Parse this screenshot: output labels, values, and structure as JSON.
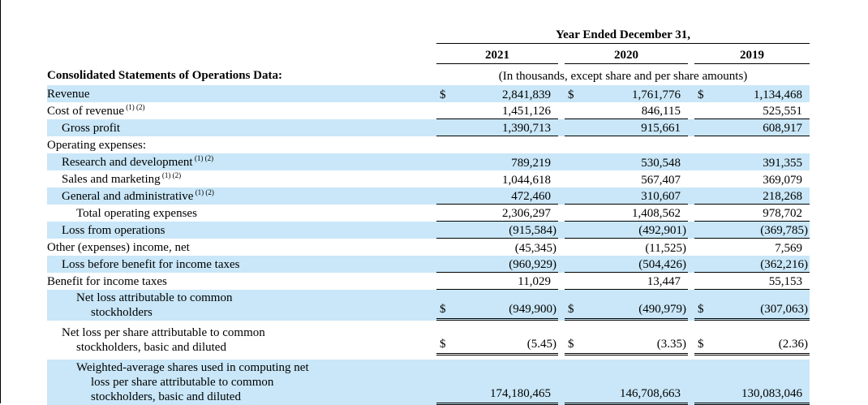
{
  "colors": {
    "row_shade": "#c9e7f8",
    "rule": "#000000"
  },
  "table": {
    "period_header": "Year Ended December 31,",
    "years": [
      "2021",
      "2020",
      "2019"
    ],
    "section_title": "Consolidated Statements of Operations Data:",
    "units_note": "(In thousands, except share and per share amounts)",
    "rows": [
      {
        "label": "Revenue",
        "sup": "",
        "indent": 0,
        "shaded": true,
        "dollar": true,
        "rule": "none",
        "values": [
          "2,841,839",
          "1,761,776",
          "1,134,468"
        ]
      },
      {
        "label": "Cost of revenue",
        "sup": "(1) (2)",
        "indent": 0,
        "shaded": false,
        "dollar": false,
        "rule": "single",
        "values": [
          "1,451,126",
          "846,115",
          "525,551"
        ]
      },
      {
        "label": "Gross profit",
        "sup": "",
        "indent": 1,
        "shaded": true,
        "dollar": false,
        "rule": "single",
        "values": [
          "1,390,713",
          "915,661",
          "608,917"
        ]
      },
      {
        "label": "Operating expenses:",
        "sup": "",
        "indent": 0,
        "shaded": false,
        "dollar": false,
        "rule": "none",
        "values": null
      },
      {
        "label": "Research and development",
        "sup": "(1) (2)",
        "indent": 1,
        "shaded": true,
        "dollar": false,
        "rule": "none",
        "values": [
          "789,219",
          "530,548",
          "391,355"
        ]
      },
      {
        "label": "Sales and marketing",
        "sup": "(1) (2)",
        "indent": 1,
        "shaded": false,
        "dollar": false,
        "rule": "none",
        "values": [
          "1,044,618",
          "567,407",
          "369,079"
        ]
      },
      {
        "label": "General and administrative",
        "sup": "(1) (2)",
        "indent": 1,
        "shaded": true,
        "dollar": false,
        "rule": "single",
        "values": [
          "472,460",
          "310,607",
          "218,268"
        ]
      },
      {
        "label": "Total operating expenses",
        "sup": "",
        "indent": 2,
        "shaded": false,
        "dollar": false,
        "rule": "single",
        "values": [
          "2,306,297",
          "1,408,562",
          "978,702"
        ]
      },
      {
        "label": "Loss from operations",
        "sup": "",
        "indent": 1,
        "shaded": true,
        "dollar": false,
        "rule": "single",
        "values": [
          "(915,584)",
          "(492,901)",
          "(369,785)"
        ]
      },
      {
        "label": "Other (expenses) income, net",
        "sup": "",
        "indent": 0,
        "shaded": false,
        "dollar": false,
        "rule": "none",
        "values": [
          "(45,345)",
          "(11,525)",
          "7,569"
        ]
      },
      {
        "label": "Loss before benefit for income taxes",
        "sup": "",
        "indent": 1,
        "shaded": true,
        "dollar": false,
        "rule": "single",
        "values": [
          "(960,929)",
          "(504,426)",
          "(362,216)"
        ]
      },
      {
        "label": "Benefit for income taxes",
        "sup": "",
        "indent": 0,
        "shaded": false,
        "dollar": false,
        "rule": "single",
        "values": [
          "11,029",
          "13,447",
          "55,153"
        ]
      },
      {
        "label": "Net loss attributable to common\nstockholders",
        "sup": "",
        "indent": 2,
        "shaded": true,
        "dollar": true,
        "rule": "double",
        "values": [
          "(949,900)",
          "(490,979)",
          "(307,063)"
        ]
      },
      {
        "label": "Net loss per share attributable to common\nstockholders, basic and diluted",
        "sup": "",
        "indent": 1,
        "shaded": false,
        "dollar": true,
        "rule": "double",
        "values": [
          "(5.45)",
          "(3.35)",
          "(2.36)"
        ]
      },
      {
        "label": "Weighted-average shares used in computing net\nloss per share attributable to common\nstockholders, basic and diluted",
        "sup": "",
        "indent": 2,
        "shaded": true,
        "dollar": false,
        "rule": "double",
        "values": [
          "174,180,465",
          "146,708,663",
          "130,083,046"
        ]
      }
    ]
  }
}
